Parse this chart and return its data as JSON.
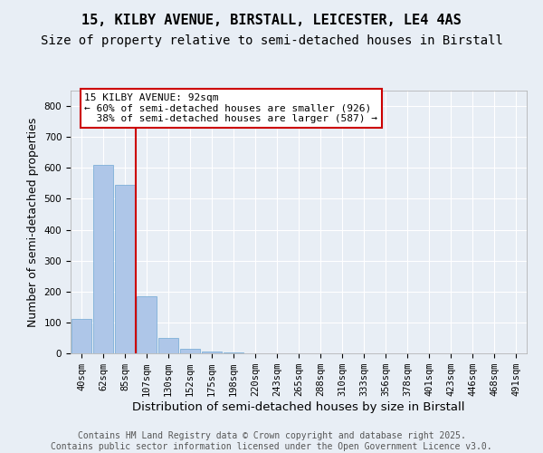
{
  "title_line1": "15, KILBY AVENUE, BIRSTALL, LEICESTER, LE4 4AS",
  "title_line2": "Size of property relative to semi-detached houses in Birstall",
  "xlabel": "Distribution of semi-detached houses by size in Birstall",
  "ylabel": "Number of semi-detached properties",
  "bar_labels": [
    "40sqm",
    "62sqm",
    "85sqm",
    "107sqm",
    "130sqm",
    "152sqm",
    "175sqm",
    "198sqm",
    "220sqm",
    "243sqm",
    "265sqm",
    "288sqm",
    "310sqm",
    "333sqm",
    "356sqm",
    "378sqm",
    "401sqm",
    "423sqm",
    "446sqm",
    "468sqm",
    "491sqm"
  ],
  "bar_values": [
    110,
    610,
    545,
    185,
    50,
    15,
    5,
    2,
    1,
    0,
    0,
    0,
    0,
    0,
    0,
    0,
    0,
    0,
    0,
    0,
    0
  ],
  "bar_color": "#aec6e8",
  "bar_edgecolor": "#6fa8d4",
  "property_label": "15 KILBY AVENUE: 92sqm",
  "pct_smaller": 60,
  "pct_smaller_n": 926,
  "pct_larger": 38,
  "pct_larger_n": 587,
  "vline_color": "#cc0000",
  "vline_x": 2.5,
  "ylim": [
    0,
    850
  ],
  "yticks": [
    0,
    100,
    200,
    300,
    400,
    500,
    600,
    700,
    800
  ],
  "bg_color": "#e8eef5",
  "footer_line1": "Contains HM Land Registry data © Crown copyright and database right 2025.",
  "footer_line2": "Contains public sector information licensed under the Open Government Licence v3.0.",
  "annotation_box_color": "#cc0000",
  "title_fontsize": 11,
  "subtitle_fontsize": 10,
  "axis_label_fontsize": 9,
  "tick_fontsize": 7.5,
  "footer_fontsize": 7,
  "ann_fontsize": 8
}
